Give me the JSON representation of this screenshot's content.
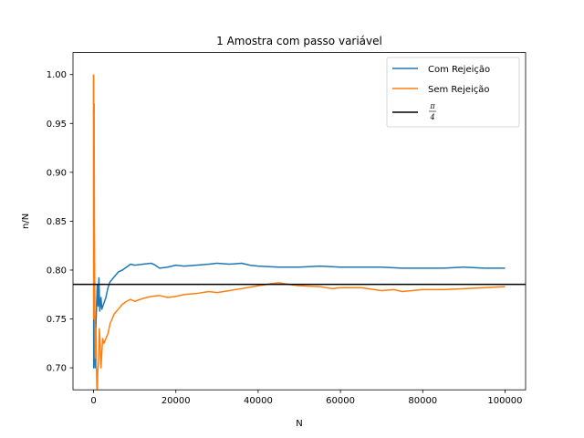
{
  "chart_data": {
    "type": "line",
    "title": "1 Amostra com passo variável",
    "xlabel": "N",
    "ylabel": "n/N",
    "xlim": [
      -5000,
      105000
    ],
    "ylim": [
      0.6775,
      1.0225
    ],
    "xticks": [
      0,
      20000,
      40000,
      60000,
      80000,
      100000
    ],
    "xtick_labels": [
      "0",
      "20000",
      "40000",
      "60000",
      "80000",
      "100000"
    ],
    "yticks": [
      0.7,
      0.75,
      0.8,
      0.85,
      0.9,
      0.95,
      1.0
    ],
    "ytick_labels": [
      "0.70",
      "0.75",
      "0.80",
      "0.85",
      "0.90",
      "0.95",
      "1.00"
    ],
    "grid": false,
    "legend_position": "top-right",
    "series": [
      {
        "name": "Com Rejeição",
        "color": "#1f77b4",
        "points": [
          [
            0,
            1.0
          ],
          [
            30,
            0.7
          ],
          [
            60,
            0.78
          ],
          [
            100,
            0.97
          ],
          [
            150,
            0.85
          ],
          [
            200,
            0.78
          ],
          [
            300,
            0.72
          ],
          [
            400,
            0.7
          ],
          [
            500,
            0.735
          ],
          [
            700,
            0.76
          ],
          [
            900,
            0.785
          ],
          [
            1100,
            0.763
          ],
          [
            1300,
            0.792
          ],
          [
            1500,
            0.758
          ],
          [
            1800,
            0.772
          ],
          [
            2000,
            0.76
          ],
          [
            2500,
            0.766
          ],
          [
            3000,
            0.772
          ],
          [
            3500,
            0.782
          ],
          [
            4000,
            0.788
          ],
          [
            5000,
            0.793
          ],
          [
            6000,
            0.798
          ],
          [
            7000,
            0.8
          ],
          [
            8000,
            0.803
          ],
          [
            9000,
            0.806
          ],
          [
            10000,
            0.805
          ],
          [
            12000,
            0.806
          ],
          [
            14000,
            0.807
          ],
          [
            15000,
            0.805
          ],
          [
            16000,
            0.802
          ],
          [
            18000,
            0.803
          ],
          [
            20000,
            0.805
          ],
          [
            22000,
            0.804
          ],
          [
            25000,
            0.805
          ],
          [
            28000,
            0.806
          ],
          [
            30000,
            0.807
          ],
          [
            33000,
            0.806
          ],
          [
            36000,
            0.807
          ],
          [
            38000,
            0.805
          ],
          [
            40000,
            0.804
          ],
          [
            45000,
            0.803
          ],
          [
            50000,
            0.803
          ],
          [
            55000,
            0.804
          ],
          [
            60000,
            0.803
          ],
          [
            65000,
            0.803
          ],
          [
            70000,
            0.803
          ],
          [
            75000,
            0.802
          ],
          [
            80000,
            0.802
          ],
          [
            85000,
            0.802
          ],
          [
            90000,
            0.803
          ],
          [
            95000,
            0.802
          ],
          [
            100000,
            0.802
          ]
        ]
      },
      {
        "name": "Sem Rejeição",
        "color": "#ff7f0e",
        "points": [
          [
            0,
            1.0
          ],
          [
            40,
            0.75
          ],
          [
            80,
            0.96
          ],
          [
            120,
            0.8
          ],
          [
            160,
            0.915
          ],
          [
            200,
            0.85
          ],
          [
            260,
            0.8
          ],
          [
            300,
            0.76
          ],
          [
            400,
            0.71
          ],
          [
            500,
            0.72
          ],
          [
            600,
            0.74
          ],
          [
            700,
            0.7
          ],
          [
            800,
            0.68
          ],
          [
            900,
            0.67
          ],
          [
            1000,
            0.695
          ],
          [
            1200,
            0.705
          ],
          [
            1400,
            0.74
          ],
          [
            1600,
            0.725
          ],
          [
            1800,
            0.7
          ],
          [
            2000,
            0.715
          ],
          [
            2200,
            0.73
          ],
          [
            2500,
            0.725
          ],
          [
            3000,
            0.73
          ],
          [
            3500,
            0.735
          ],
          [
            4000,
            0.745
          ],
          [
            5000,
            0.755
          ],
          [
            6000,
            0.76
          ],
          [
            7000,
            0.765
          ],
          [
            8000,
            0.768
          ],
          [
            9000,
            0.77
          ],
          [
            10000,
            0.768
          ],
          [
            12000,
            0.771
          ],
          [
            14000,
            0.773
          ],
          [
            16000,
            0.774
          ],
          [
            18000,
            0.772
          ],
          [
            20000,
            0.773
          ],
          [
            22000,
            0.775
          ],
          [
            25000,
            0.776
          ],
          [
            28000,
            0.778
          ],
          [
            30000,
            0.777
          ],
          [
            33000,
            0.779
          ],
          [
            36000,
            0.781
          ],
          [
            40000,
            0.784
          ],
          [
            43000,
            0.786
          ],
          [
            45000,
            0.787
          ],
          [
            48000,
            0.785
          ],
          [
            50000,
            0.784
          ],
          [
            55000,
            0.783
          ],
          [
            58000,
            0.781
          ],
          [
            60000,
            0.782
          ],
          [
            65000,
            0.782
          ],
          [
            70000,
            0.779
          ],
          [
            73000,
            0.78
          ],
          [
            75000,
            0.778
          ],
          [
            80000,
            0.78
          ],
          [
            85000,
            0.78
          ],
          [
            90000,
            0.781
          ],
          [
            95000,
            0.782
          ],
          [
            100000,
            0.783
          ]
        ]
      }
    ],
    "reference_line": {
      "name_numerator": "π",
      "name_denominator": "4",
      "value": 0.7854,
      "color": "#000000"
    }
  }
}
